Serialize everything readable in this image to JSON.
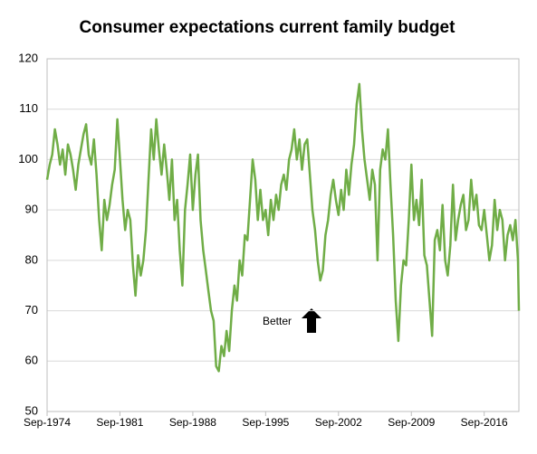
{
  "chart_data": {
    "type": "line",
    "title": "Consumer expectations current family  budget",
    "annotation": "Better",
    "x": [
      "Sep-1974",
      "Dec-1974",
      "Mar-1975",
      "Jun-1975",
      "Sep-1975",
      "Dec-1975",
      "Mar-1976",
      "Jun-1976",
      "Sep-1976",
      "Dec-1976",
      "Mar-1977",
      "Jun-1977",
      "Sep-1977",
      "Dec-1977",
      "Mar-1978",
      "Jun-1978",
      "Sep-1978",
      "Dec-1978",
      "Mar-1979",
      "Jun-1979",
      "Sep-1979",
      "Dec-1979",
      "Mar-1980",
      "Jun-1980",
      "Sep-1980",
      "Dec-1980",
      "Mar-1981",
      "Jun-1981",
      "Sep-1981",
      "Dec-1981",
      "Mar-1982",
      "Jun-1982",
      "Sep-1982",
      "Dec-1982",
      "Mar-1983",
      "Jun-1983",
      "Sep-1983",
      "Dec-1983",
      "Mar-1984",
      "Jun-1984",
      "Sep-1984",
      "Dec-1984",
      "Mar-1985",
      "Jun-1985",
      "Sep-1985",
      "Dec-1985",
      "Mar-1986",
      "Jun-1986",
      "Sep-1986",
      "Dec-1986",
      "Mar-1987",
      "Jun-1987",
      "Sep-1987",
      "Dec-1987",
      "Mar-1988",
      "Jun-1988",
      "Sep-1988",
      "Dec-1988",
      "Mar-1989",
      "Jun-1989",
      "Sep-1989",
      "Dec-1989",
      "Mar-1990",
      "Jun-1990",
      "Sep-1990",
      "Dec-1990",
      "Mar-1991",
      "Jun-1991",
      "Sep-1991",
      "Dec-1991",
      "Mar-1992",
      "Jun-1992",
      "Sep-1992",
      "Dec-1992",
      "Mar-1993",
      "Jun-1993",
      "Sep-1993",
      "Dec-1993",
      "Mar-1994",
      "Jun-1994",
      "Sep-1994",
      "Dec-1994",
      "Mar-1995",
      "Jun-1995",
      "Sep-1995",
      "Dec-1995",
      "Mar-1996",
      "Jun-1996",
      "Sep-1996",
      "Dec-1996",
      "Mar-1997",
      "Jun-1997",
      "Sep-1997",
      "Dec-1997",
      "Mar-1998",
      "Jun-1998",
      "Sep-1998",
      "Dec-1998",
      "Mar-1999",
      "Jun-1999",
      "Sep-1999",
      "Dec-1999",
      "Mar-2000",
      "Jun-2000",
      "Sep-2000",
      "Dec-2000",
      "Mar-2001",
      "Jun-2001",
      "Sep-2001",
      "Dec-2001",
      "Mar-2002",
      "Jun-2002",
      "Sep-2002",
      "Dec-2002",
      "Mar-2003",
      "Jun-2003",
      "Sep-2003",
      "Dec-2003",
      "Mar-2004",
      "Jun-2004",
      "Sep-2004",
      "Dec-2004",
      "Mar-2005",
      "Jun-2005",
      "Sep-2005",
      "Dec-2005",
      "Mar-2006",
      "Jun-2006",
      "Sep-2006",
      "Dec-2006",
      "Mar-2007",
      "Jun-2007",
      "Sep-2007",
      "Dec-2007",
      "Mar-2008",
      "Jun-2008",
      "Sep-2008",
      "Dec-2008",
      "Mar-2009",
      "Jun-2009",
      "Sep-2009",
      "Dec-2009",
      "Mar-2010",
      "Jun-2010",
      "Sep-2010",
      "Dec-2010",
      "Mar-2011",
      "Jun-2011",
      "Sep-2011",
      "Dec-2011",
      "Mar-2012",
      "Jun-2012",
      "Sep-2012",
      "Dec-2012",
      "Mar-2013",
      "Jun-2013",
      "Sep-2013",
      "Dec-2013",
      "Mar-2014",
      "Jun-2014",
      "Sep-2014",
      "Dec-2014",
      "Mar-2015",
      "Jun-2015",
      "Sep-2015",
      "Dec-2015",
      "Mar-2016",
      "Jun-2016",
      "Sep-2016",
      "Dec-2016",
      "Mar-2017",
      "Jun-2017",
      "Sep-2017",
      "Dec-2017",
      "Mar-2018",
      "Jun-2018",
      "Sep-2018",
      "Dec-2018",
      "Mar-2019",
      "Jun-2019",
      "Sep-2019",
      "Dec-2019",
      "Jan-2020"
    ],
    "series": [
      {
        "color": "#70ad47",
        "values": [
          96,
          99,
          101,
          106,
          103,
          99,
          102,
          97,
          103,
          101,
          98,
          94,
          99,
          102,
          105,
          107,
          101,
          99,
          104,
          97,
          88,
          82,
          92,
          88,
          91,
          95,
          98,
          108,
          100,
          92,
          86,
          90,
          88,
          79,
          73,
          81,
          77,
          80,
          86,
          96,
          106,
          100,
          108,
          102,
          97,
          103,
          98,
          92,
          100,
          88,
          92,
          82,
          75,
          90,
          95,
          101,
          90,
          97,
          101,
          88,
          82,
          78,
          74,
          70,
          68,
          59,
          58,
          63,
          61,
          66,
          62,
          70,
          75,
          72,
          80,
          77,
          85,
          84,
          92,
          100,
          96,
          88,
          94,
          88,
          90,
          85,
          92,
          88,
          93,
          90,
          95,
          97,
          94,
          100,
          102,
          106,
          100,
          104,
          98,
          103,
          104,
          97,
          90,
          86,
          80,
          76,
          78,
          85,
          88,
          93,
          96,
          92,
          89,
          94,
          90,
          98,
          93,
          99,
          103,
          111,
          115,
          106,
          100,
          96,
          92,
          98,
          95,
          80,
          98,
          102,
          100,
          106,
          95,
          85,
          72,
          64,
          75,
          80,
          79,
          88,
          99,
          88,
          92,
          87,
          96,
          81,
          79,
          72,
          65,
          84,
          86,
          82,
          91,
          80,
          77,
          83,
          95,
          84,
          88,
          91,
          93,
          86,
          88,
          96,
          90,
          93,
          87,
          86,
          90,
          85,
          80,
          83,
          92,
          86,
          90,
          88,
          80,
          85,
          87,
          84,
          88,
          80,
          70
        ]
      }
    ],
    "xlim": [
      "Sep-1974",
      "Jan-2020"
    ],
    "xticks": [
      "Sep-1974",
      "Sep-1981",
      "Sep-1988",
      "Sep-1995",
      "Sep-2002",
      "Sep-2009",
      "Sep-2016"
    ],
    "ylim": [
      50,
      120
    ],
    "yticks": [
      50,
      60,
      70,
      80,
      90,
      100,
      110,
      120
    ],
    "grid": true
  }
}
